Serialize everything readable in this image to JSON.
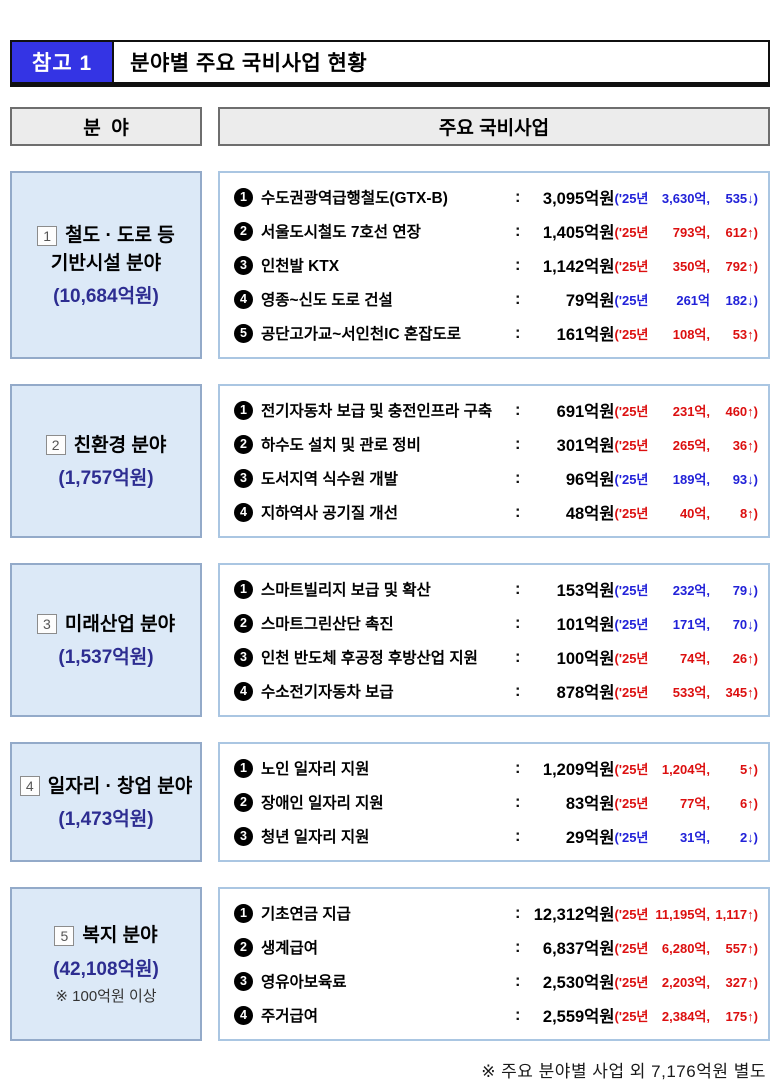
{
  "colors": {
    "up": "#dc0f0f",
    "down": "#2121d8",
    "badge_blue": "#3434e4",
    "field_amount_navy": "#2d2d91",
    "field_box_bg": "#dce9f7"
  },
  "header": {
    "badge": "참고 1",
    "title": "분야별 주요 국비사업 현황"
  },
  "columns": {
    "field": "분  야",
    "projects": "주요 국비사업"
  },
  "paren_prefix": "('25년 ",
  "sections": [
    {
      "num": "1",
      "line1": "철도 · 도로 등",
      "line2": "기반시설 분야",
      "amount": "(10,684억원)",
      "items": [
        {
          "n": "1",
          "name": "수도권광역급행철도(GTX-B)",
          "amount": "3,095억원",
          "prev": "3,630억,",
          "delta": "535↓)",
          "paren_color": "#2121d8"
        },
        {
          "n": "2",
          "name": "서울도시철도 7호선 연장",
          "amount": "1,405억원",
          "prev": "793억,",
          "delta": "612↑)",
          "paren_color": "#dc0f0f"
        },
        {
          "n": "3",
          "name": "인천발 KTX",
          "amount": "1,142억원",
          "prev": "350억,",
          "delta": "792↑)",
          "paren_color": "#dc0f0f"
        },
        {
          "n": "4",
          "name": "영종~신도 도로 건설",
          "amount": "79억원",
          "prev": "261억",
          "delta": "182↓)",
          "paren_color": "#2121d8"
        },
        {
          "n": "5",
          "name": "공단고가교~서인천IC 혼잡도로",
          "amount": "161억원",
          "prev": "108억,",
          "delta": "53↑)",
          "paren_color": "#dc0f0f"
        }
      ]
    },
    {
      "num": "2",
      "line1": "친환경 분야",
      "amount": "(1,757억원)",
      "items": [
        {
          "n": "1",
          "name": "전기자동차 보급 및 충전인프라 구축",
          "amount": "691억원",
          "prev": "231억,",
          "delta": "460↑)",
          "paren_color": "#dc0f0f"
        },
        {
          "n": "2",
          "name": "하수도 설치 및 관로 정비",
          "amount": "301억원",
          "prev": "265억,",
          "delta": "36↑)",
          "paren_color": "#dc0f0f"
        },
        {
          "n": "3",
          "name": "도서지역 식수원 개발",
          "amount": "96억원",
          "prev": "189억,",
          "delta": "93↓)",
          "paren_color": "#2121d8"
        },
        {
          "n": "4",
          "name": "지하역사 공기질 개선",
          "amount": "48억원",
          "prev": "40억,",
          "delta": "8↑)",
          "paren_color": "#dc0f0f"
        }
      ]
    },
    {
      "num": "3",
      "line1": "미래산업 분야",
      "amount": "(1,537억원)",
      "items": [
        {
          "n": "1",
          "name": "스마트빌리지 보급 및 확산",
          "amount": "153억원",
          "prev": "232억,",
          "delta": "79↓)",
          "paren_color": "#2121d8"
        },
        {
          "n": "2",
          "name": "스마트그린산단 촉진",
          "amount": "101억원",
          "prev": "171억,",
          "delta": "70↓)",
          "paren_color": "#2121d8"
        },
        {
          "n": "3",
          "name": "인천 반도체 후공정 후방산업 지원",
          "amount": "100억원",
          "prev": "74억,",
          "delta": "26↑)",
          "paren_color": "#dc0f0f"
        },
        {
          "n": "4",
          "name": "수소전기자동차 보급",
          "amount": "878억원",
          "prev": "533억,",
          "delta": "345↑)",
          "paren_color": "#dc0f0f"
        }
      ]
    },
    {
      "num": "4",
      "line1": "일자리 · 창업 분야",
      "amount": "(1,473억원)",
      "items": [
        {
          "n": "1",
          "name": "노인 일자리 지원",
          "amount": "1,209억원",
          "prev": "1,204억,",
          "delta": "5↑)",
          "paren_color": "#dc0f0f"
        },
        {
          "n": "2",
          "name": "장애인 일자리 지원",
          "amount": "83억원",
          "prev": "77억,",
          "delta": "6↑)",
          "paren_color": "#dc0f0f"
        },
        {
          "n": "3",
          "name": "청년 일자리 지원",
          "amount": "29억원",
          "prev": "31억,",
          "delta": "2↓)",
          "paren_color": "#2121d8"
        }
      ]
    },
    {
      "num": "5",
      "line1": "복지 분야",
      "amount": "(42,108억원)",
      "note": "※ 100억원 이상",
      "items": [
        {
          "n": "1",
          "name": "기초연금 지급",
          "amount": "12,312억원",
          "prev": "11,195억,",
          "delta": "1,117↑)",
          "paren_color": "#dc0f0f"
        },
        {
          "n": "2",
          "name": "생계급여",
          "amount": "6,837억원",
          "prev": "6,280억,",
          "delta": "557↑)",
          "paren_color": "#dc0f0f"
        },
        {
          "n": "3",
          "name": "영유아보육료",
          "amount": "2,530억원",
          "prev": "2,203억,",
          "delta": "327↑)",
          "paren_color": "#dc0f0f"
        },
        {
          "n": "4",
          "name": "주거급여",
          "amount": "2,559억원",
          "prev": "2,384억,",
          "delta": "175↑)",
          "paren_color": "#dc0f0f"
        }
      ]
    }
  ],
  "footer": "※ 주요 분야별 사업 외 7,176억원 별도"
}
